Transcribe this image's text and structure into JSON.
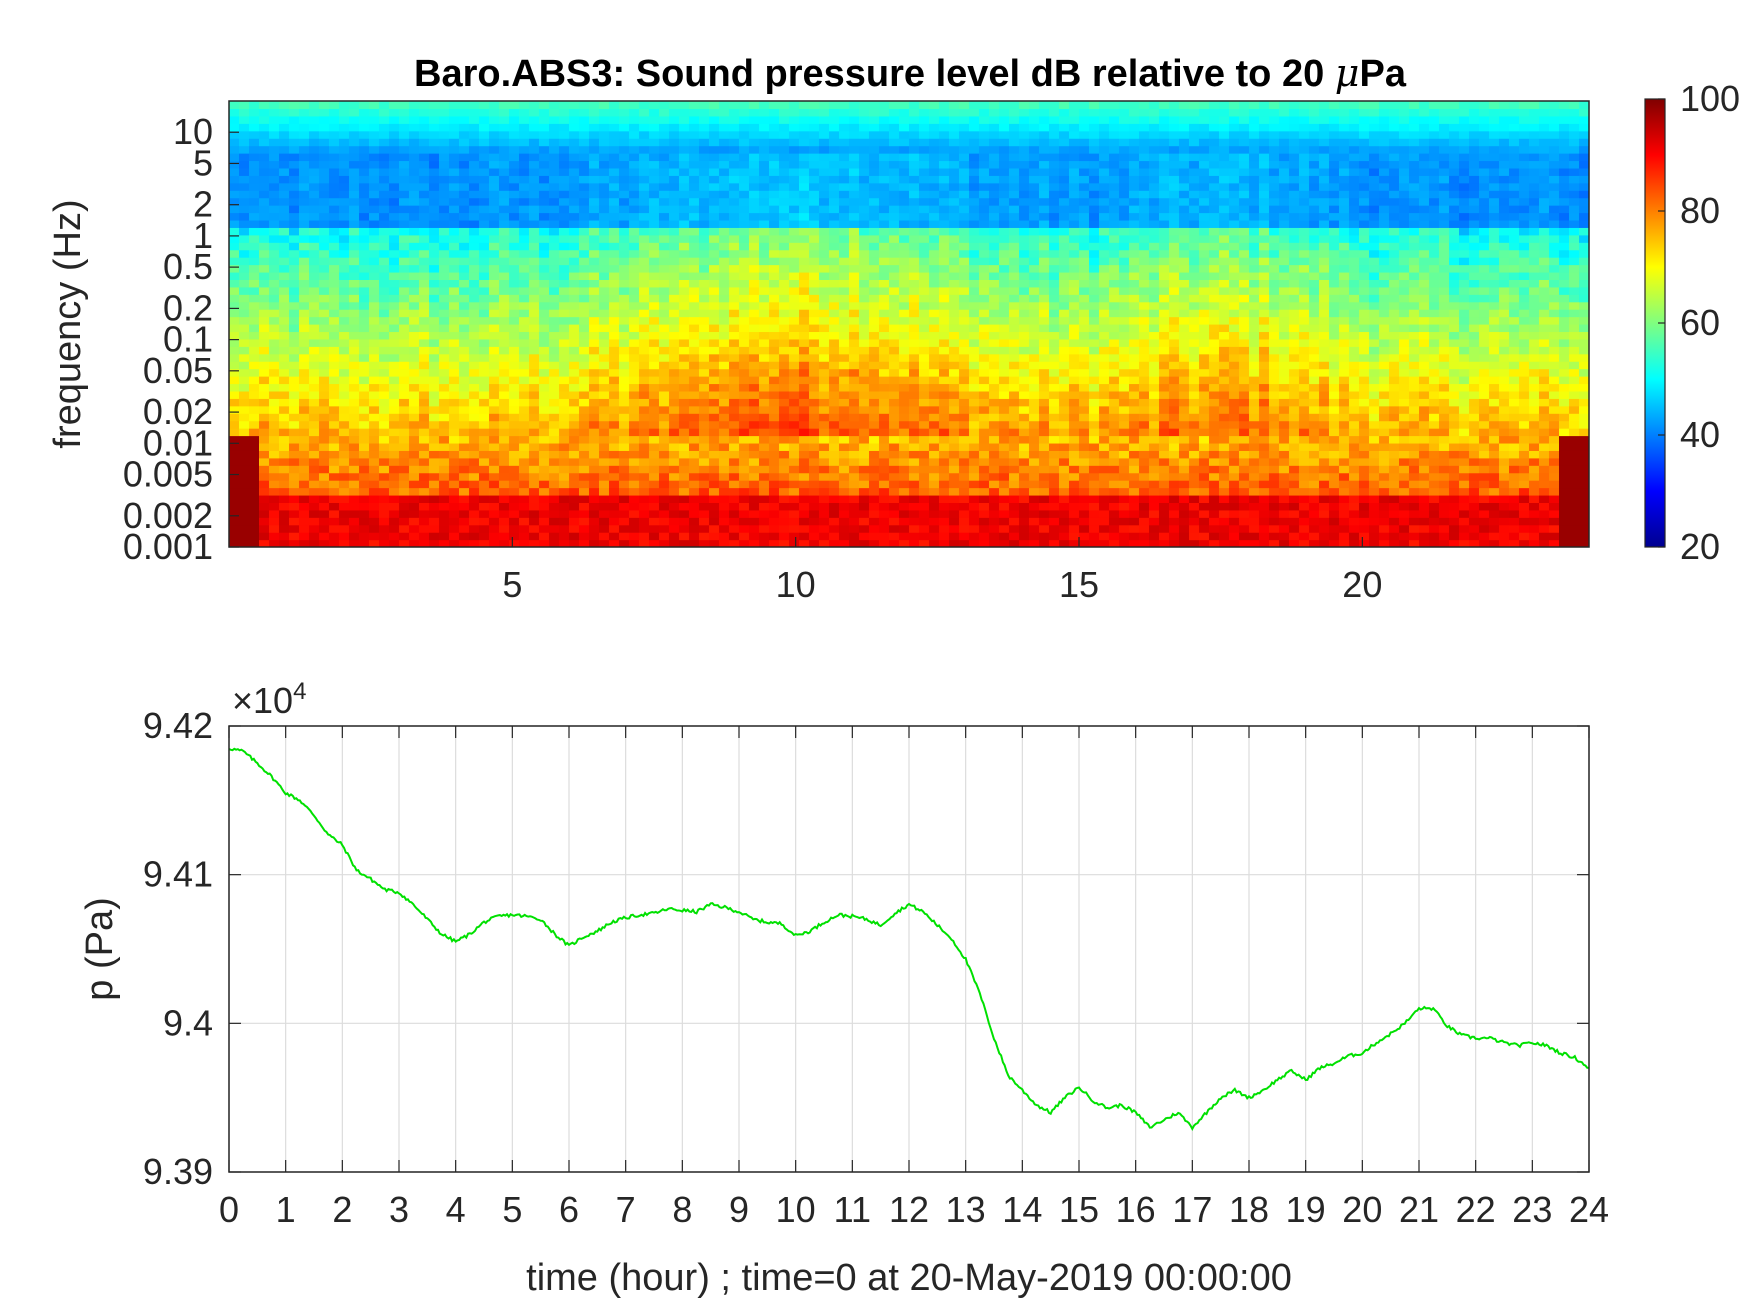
{
  "chart_data": [
    {
      "type": "heatmap",
      "title": "Baro.ABS3: Sound pressure level dB relative to 20 μPa",
      "title_prefix": "Baro.ABS3: Sound pressure level dB relative to 20 ",
      "title_mu": "μ",
      "title_suffix": "Pa",
      "ylabel": "frequency (Hz)",
      "xlabel": "",
      "yscale": "log",
      "xlim": [
        0,
        24
      ],
      "ylim": [
        0.001,
        20
      ],
      "x_ticks": [
        "5",
        "10",
        "15",
        "20"
      ],
      "y_ticks": [
        "0.001",
        "0.002",
        "0.005",
        "0.01",
        "0.02",
        "0.05",
        "0.1",
        "0.2",
        "0.5",
        "1",
        "2",
        "5",
        "10"
      ],
      "colormap": "jet",
      "colorbar": {
        "min": 20,
        "max": 100,
        "ticks": [
          "20",
          "40",
          "60",
          "80",
          "100"
        ]
      },
      "description_profile": {
        "low_freq_level_db": 88,
        "mid_freq_level_db": 65,
        "high_freq_level_db": 40,
        "top_band_level_db": 50
      }
    },
    {
      "type": "line",
      "xlabel": "time (hour) ; time=0 at 20-May-2019 00:00:00",
      "ylabel": "p (Pa)",
      "exponent_label": "×10",
      "exponent_power": "4",
      "xlim": [
        0,
        24
      ],
      "ylim": [
        93900,
        94200
      ],
      "x_ticks": [
        "0",
        "1",
        "2",
        "3",
        "4",
        "5",
        "6",
        "7",
        "8",
        "9",
        "10",
        "11",
        "12",
        "13",
        "14",
        "15",
        "16",
        "17",
        "18",
        "19",
        "20",
        "21",
        "22",
        "23",
        "24"
      ],
      "y_ticks": [
        "9.39",
        "9.4",
        "9.41",
        "9.42"
      ],
      "grid": true,
      "series": [
        {
          "color": "#00e000",
          "x": [
            0,
            0.25,
            0.5,
            0.75,
            1.0,
            1.25,
            1.5,
            1.75,
            2.0,
            2.25,
            2.5,
            2.75,
            3.0,
            3.25,
            3.5,
            3.75,
            4.0,
            4.25,
            4.5,
            4.75,
            5.0,
            5.25,
            5.5,
            5.75,
            6.0,
            6.25,
            6.5,
            6.75,
            7.0,
            7.25,
            7.5,
            7.75,
            8.0,
            8.25,
            8.5,
            8.75,
            9.0,
            9.25,
            9.5,
            9.75,
            10.0,
            10.25,
            10.5,
            10.75,
            11.0,
            11.25,
            11.5,
            11.75,
            12.0,
            12.25,
            12.5,
            12.75,
            13.0,
            13.25,
            13.5,
            13.75,
            14.0,
            14.25,
            14.5,
            14.75,
            15.0,
            15.25,
            15.5,
            15.75,
            16.0,
            16.25,
            16.5,
            16.75,
            17.0,
            17.25,
            17.5,
            17.75,
            18.0,
            18.25,
            18.5,
            18.75,
            19.0,
            19.25,
            19.5,
            19.75,
            20.0,
            20.25,
            20.5,
            20.75,
            21.0,
            21.25,
            21.5,
            21.75,
            22.0,
            22.25,
            22.5,
            22.75,
            23.0,
            23.25,
            23.5,
            23.75,
            24.0
          ],
          "y": [
            94185,
            94183,
            94175,
            94166,
            94155,
            94150,
            94140,
            94127,
            94120,
            94103,
            94097,
            94090,
            94088,
            94080,
            94070,
            94060,
            94055,
            94060,
            94068,
            94072,
            94073,
            94072,
            94070,
            94060,
            94052,
            94058,
            94062,
            94068,
            94071,
            94073,
            94074,
            94077,
            94076,
            94075,
            94080,
            94078,
            94075,
            94070,
            94068,
            94067,
            94059,
            94062,
            94068,
            94073,
            94072,
            94070,
            94066,
            94074,
            94080,
            94075,
            94066,
            94057,
            94043,
            94020,
            93990,
            93965,
            93955,
            93945,
            93940,
            93950,
            93957,
            93948,
            93943,
            93945,
            93940,
            93930,
            93935,
            93940,
            93930,
            93940,
            93950,
            93955,
            93950,
            93955,
            93962,
            93968,
            93962,
            93970,
            93973,
            93978,
            93980,
            93987,
            93993,
            94000,
            94010,
            94010,
            93998,
            93992,
            93990,
            93990,
            93987,
            93985,
            93987,
            93985,
            93980,
            93977,
            93970
          ]
        }
      ]
    }
  ]
}
